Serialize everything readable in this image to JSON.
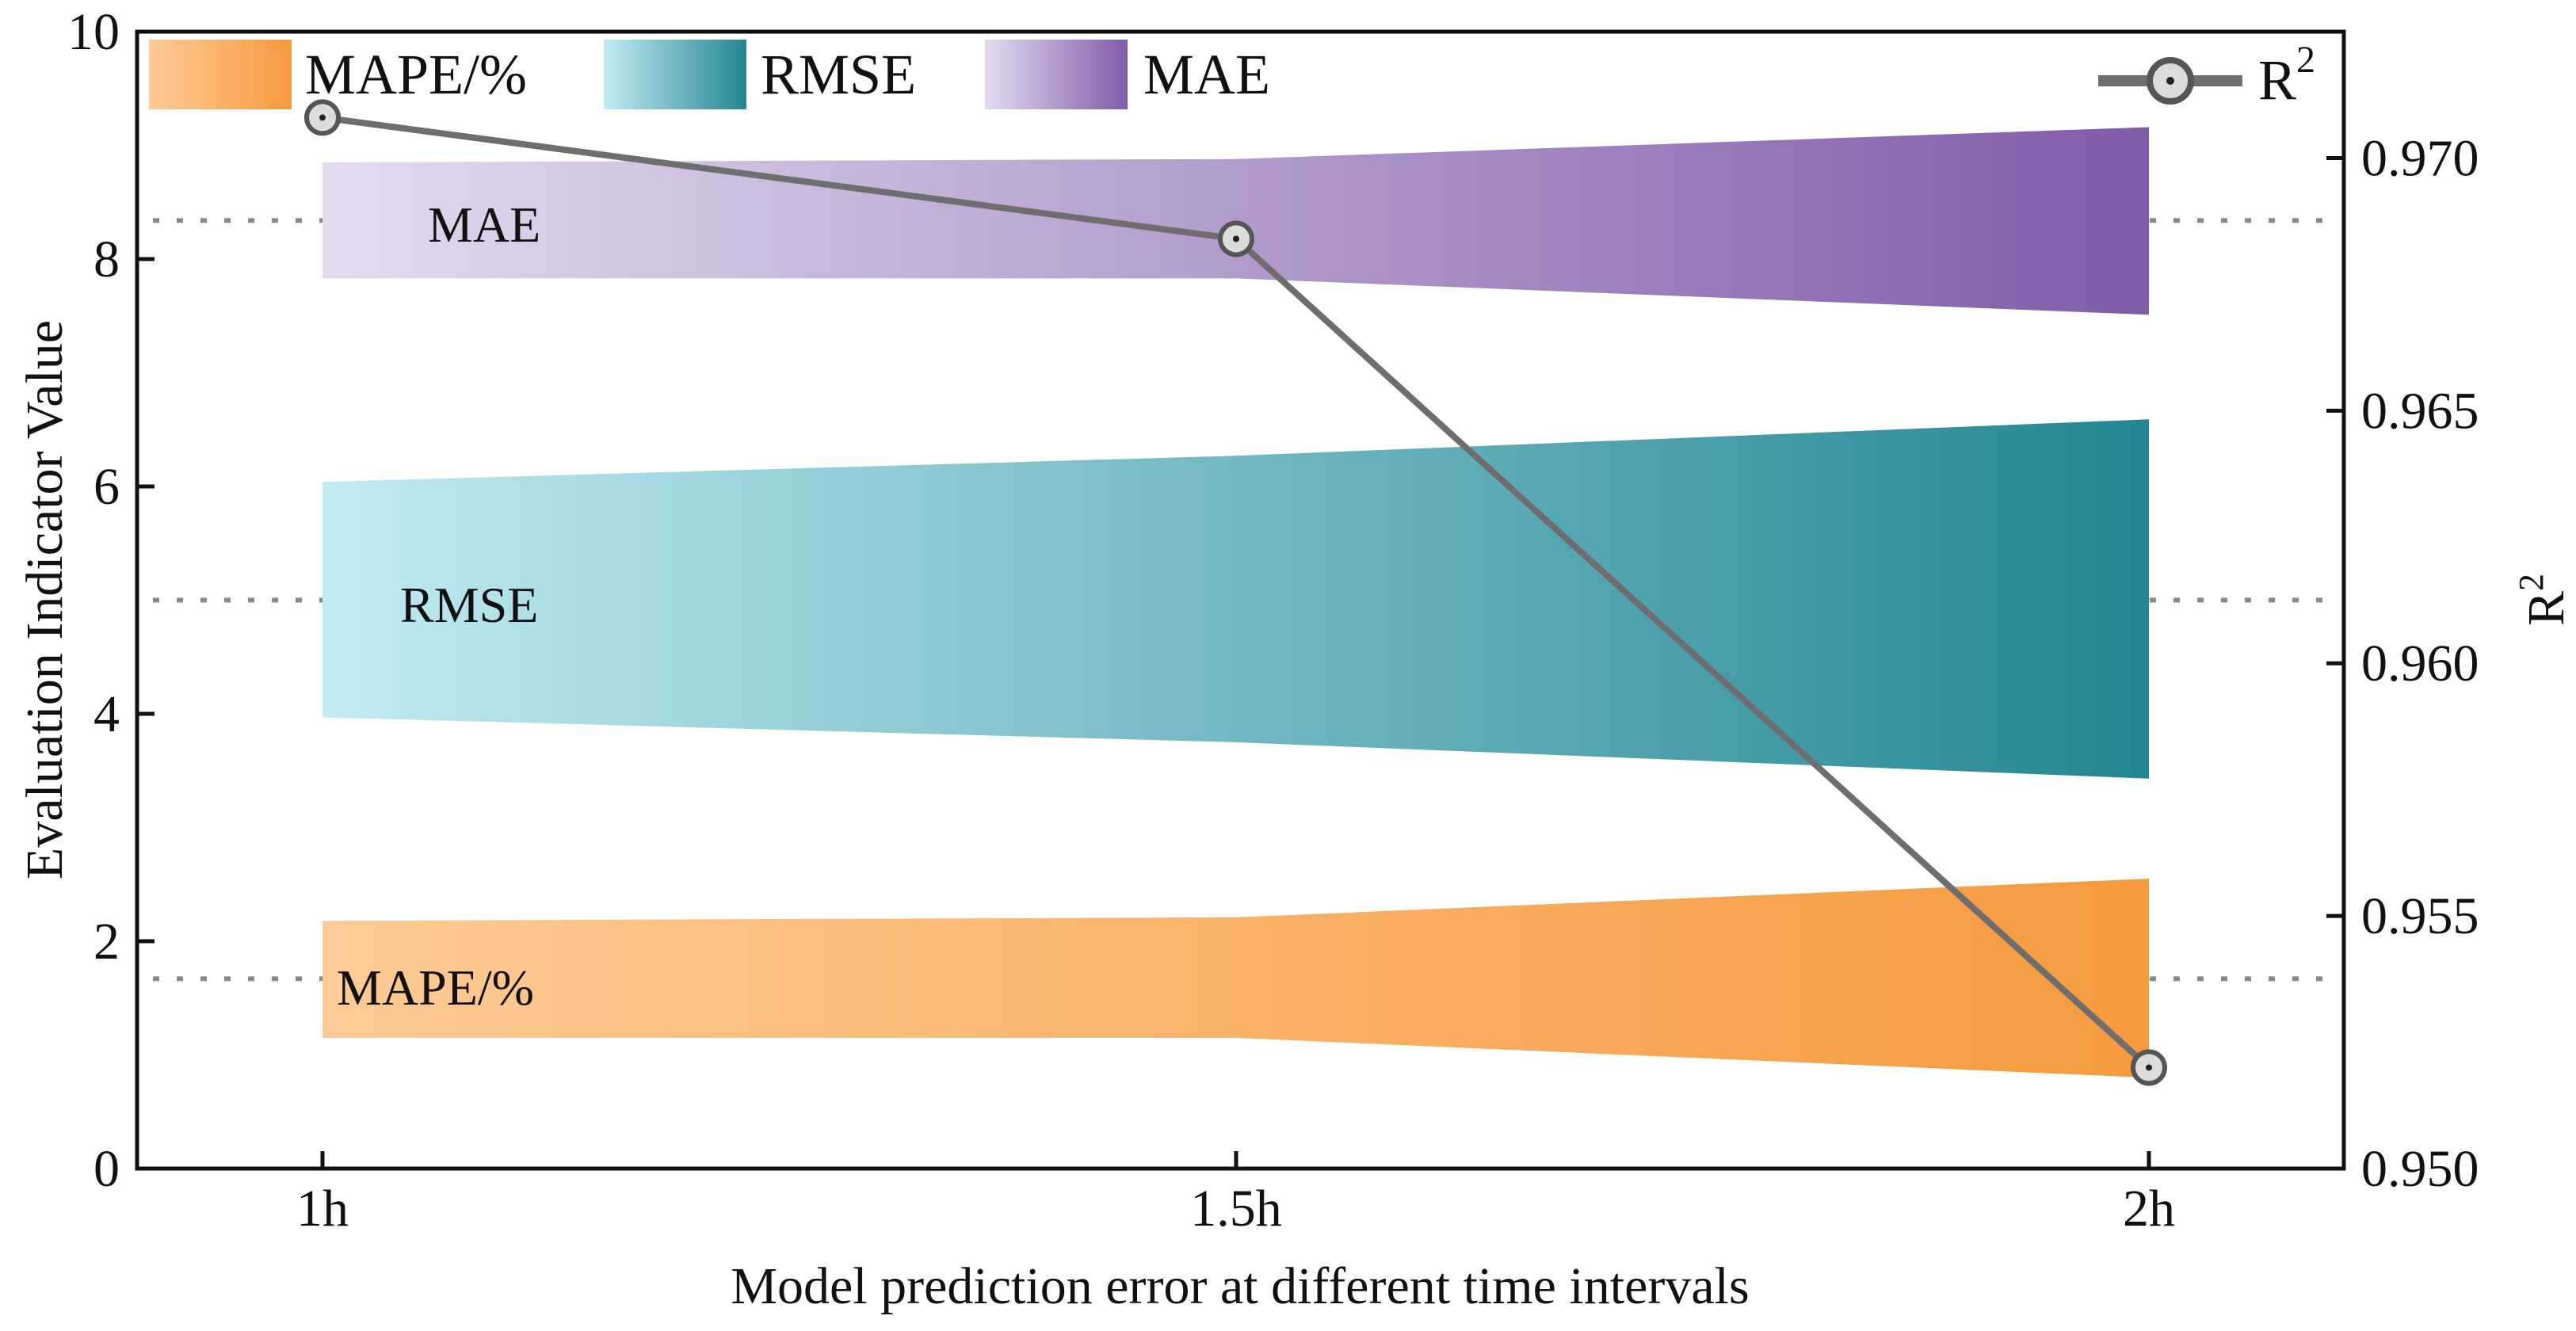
{
  "chart_data": {
    "type": "area",
    "xlabel": "Model prediction error at different time intervals",
    "ylabel": "Evaluation Indicator Value",
    "y2label": "R",
    "y2label_sup": "2",
    "categories": [
      "1h",
      "1.5h",
      "2h"
    ],
    "ylim": [
      0,
      10
    ],
    "yticks": [
      "0",
      "2",
      "4",
      "6",
      "8",
      "10"
    ],
    "y2lim": [
      0.95,
      0.9725
    ],
    "y2ticks": [
      "0.950",
      "0.955",
      "0.960",
      "0.965",
      "0.970"
    ],
    "bands": [
      {
        "name": "MAPE/%",
        "label": "MAPE/%",
        "center": 1.67,
        "lower": [
          1.15,
          1.15,
          0.8
        ],
        "upper": [
          2.18,
          2.21,
          2.55
        ],
        "color_light": "#fdcb96",
        "color_dark": "#f69a3e"
      },
      {
        "name": "RMSE",
        "label": "RMSE",
        "center": 5.0,
        "lower": [
          3.97,
          3.75,
          3.43
        ],
        "upper": [
          6.04,
          6.27,
          6.59
        ],
        "color_light": "#c2ebf2",
        "color_dark": "#238692"
      },
      {
        "name": "MAE",
        "label": "MAE",
        "center": 8.34,
        "lower": [
          7.83,
          7.83,
          7.51
        ],
        "upper": [
          8.85,
          8.88,
          9.16
        ],
        "color_light": "#e5dbef",
        "color_dark": "#7f5ca9"
      }
    ],
    "r2_series": {
      "name": "R",
      "name_sup": "2",
      "values": [
        0.9708,
        0.9684,
        0.952
      ],
      "line_color": "#6e6e6e",
      "marker_fill": "#dcdcdc"
    },
    "legend_position": "top",
    "grid": false
  }
}
